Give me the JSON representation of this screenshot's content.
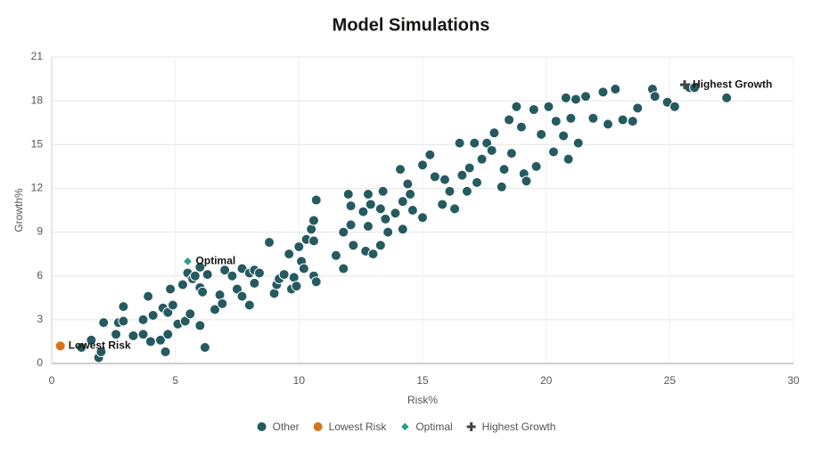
{
  "chart_data": {
    "type": "scatter",
    "title": "Model Simulations",
    "x_label": "Risk%",
    "y_label": "Growth%",
    "xlim": [
      0,
      30
    ],
    "xticks": [
      0,
      5,
      10,
      15,
      20,
      25,
      30
    ],
    "ylim": [
      0,
      21
    ],
    "yticks": [
      0,
      3,
      6,
      9,
      12,
      15,
      18,
      21
    ],
    "grid": true,
    "legend": "bottom",
    "series": [
      {
        "name": "Other",
        "color": "#255a60",
        "marker": "circle",
        "point_labels": false,
        "x": [
          1.2,
          1.6,
          1.9,
          2.0,
          2.1,
          2.6,
          2.7,
          2.9,
          2.9,
          3.3,
          3.7,
          3.7,
          3.9,
          4.0,
          4.1,
          4.4,
          4.5,
          4.6,
          4.7,
          4.7,
          4.8,
          4.9,
          5.1,
          5.3,
          5.4,
          5.5,
          5.6,
          5.7,
          5.8,
          6.0,
          6.0,
          6.0,
          6.1,
          6.2,
          6.3,
          6.6,
          6.8,
          6.9,
          7.0,
          7.3,
          7.5,
          7.7,
          7.7,
          8.0,
          8.0,
          8.2,
          8.2,
          8.4,
          8.8,
          9.0,
          9.1,
          9.2,
          9.4,
          9.6,
          9.7,
          9.8,
          9.9,
          10.0,
          10.1,
          10.2,
          10.3,
          10.5,
          10.6,
          10.6,
          10.6,
          10.7,
          10.7,
          11.5,
          11.8,
          11.8,
          12.0,
          12.1,
          12.1,
          12.2,
          12.6,
          12.7,
          12.8,
          12.8,
          12.9,
          13.0,
          13.3,
          13.3,
          13.4,
          13.5,
          13.6,
          13.9,
          14.1,
          14.2,
          14.2,
          14.4,
          14.5,
          14.6,
          15.0,
          15.0,
          15.3,
          15.5,
          15.8,
          15.9,
          16.1,
          16.3,
          16.5,
          16.6,
          16.8,
          16.9,
          17.1,
          17.2,
          17.4,
          17.6,
          17.8,
          17.9,
          18.2,
          18.3,
          18.5,
          18.6,
          18.8,
          19.0,
          19.1,
          19.2,
          19.5,
          19.6,
          19.8,
          20.1,
          20.3,
          20.4,
          20.7,
          20.8,
          20.9,
          21.0,
          21.2,
          21.3,
          21.6,
          21.9,
          22.3,
          22.5,
          22.8,
          23.1,
          23.5,
          23.7,
          24.3,
          24.4,
          24.9,
          25.2,
          25.8,
          26.0,
          27.3
        ],
        "values": [
          1.1,
          1.6,
          0.4,
          0.8,
          2.8,
          2.0,
          2.8,
          3.9,
          2.9,
          1.9,
          2.0,
          3.0,
          4.6,
          1.5,
          3.3,
          1.6,
          3.8,
          0.8,
          3.5,
          2.0,
          5.1,
          4.0,
          2.7,
          5.4,
          2.9,
          6.2,
          3.4,
          5.8,
          6.0,
          2.6,
          5.2,
          6.6,
          4.9,
          1.1,
          6.1,
          3.7,
          4.7,
          4.1,
          6.4,
          6.0,
          5.1,
          4.6,
          6.5,
          6.2,
          4.0,
          6.4,
          5.5,
          6.2,
          8.3,
          4.8,
          5.4,
          5.8,
          6.1,
          7.5,
          5.1,
          5.9,
          5.3,
          8.0,
          7.0,
          6.5,
          8.5,
          9.2,
          8.4,
          9.8,
          6.0,
          5.6,
          11.2,
          7.4,
          6.5,
          9.0,
          11.6,
          10.8,
          9.5,
          8.1,
          10.4,
          7.7,
          11.6,
          9.4,
          10.9,
          7.5,
          10.6,
          8.1,
          11.8,
          9.9,
          9.0,
          10.3,
          13.3,
          11.1,
          9.2,
          12.3,
          11.6,
          10.5,
          10.0,
          13.6,
          14.3,
          12.8,
          10.9,
          12.6,
          11.8,
          10.6,
          15.1,
          12.9,
          11.8,
          13.4,
          15.1,
          12.4,
          14.0,
          15.1,
          14.6,
          15.8,
          12.1,
          13.3,
          16.7,
          14.4,
          17.6,
          16.2,
          13.0,
          12.5,
          17.4,
          13.5,
          15.7,
          17.6,
          14.5,
          16.6,
          15.6,
          18.2,
          14.0,
          16.8,
          18.1,
          15.1,
          18.3,
          16.8,
          18.6,
          16.4,
          18.8,
          16.7,
          16.6,
          17.5,
          18.8,
          18.3,
          17.9,
          17.6,
          18.9,
          18.9,
          18.2
        ]
      },
      {
        "name": "Lowest Risk",
        "color": "#d9731a",
        "marker": "circle",
        "point_labels": true,
        "x": [
          0.35
        ],
        "values": [
          1.2
        ]
      },
      {
        "name": "Optimal",
        "color": "#2a9d8f",
        "marker": "diamond",
        "point_labels": true,
        "x": [
          5.5
        ],
        "values": [
          7.0
        ]
      },
      {
        "name": "Highest Growth",
        "color": "#444444",
        "marker": "plus",
        "point_labels": true,
        "x": [
          25.6
        ],
        "values": [
          19.1
        ]
      }
    ]
  }
}
